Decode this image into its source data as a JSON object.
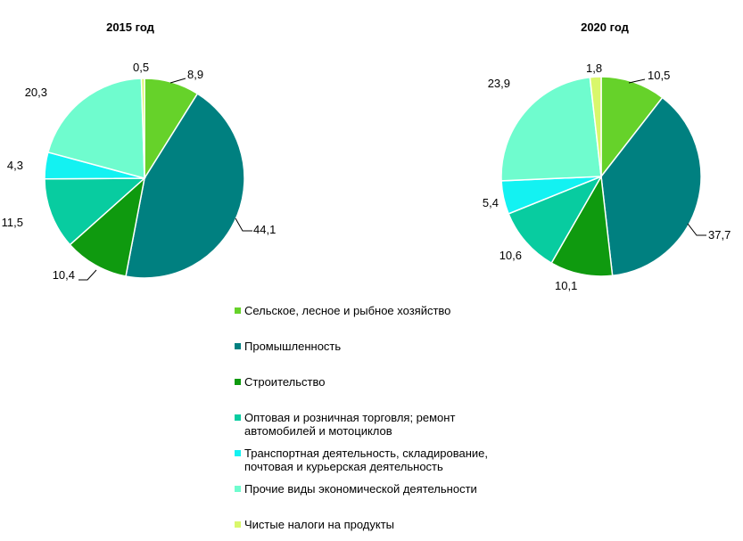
{
  "chart_data": [
    {
      "type": "pie",
      "title": "2015 год",
      "categories": [
        "Сельское, лесное и рыбное хозяйство",
        "Промышленность",
        "Строительство",
        "Оптовая и розничная торговля; ремонт автомобилей и мотоциклов",
        "Транспортная деятельность, складирование, почтовая и курьерская деятельность",
        "Прочие виды экономической деятельности",
        "Чистые налоги на продукты"
      ],
      "values": [
        8.9,
        44.1,
        10.4,
        11.5,
        4.3,
        20.3,
        0.5
      ],
      "value_labels": [
        "8,9",
        "44,1",
        "10,4",
        "11,5",
        "4,3",
        "20,3",
        "0,5"
      ]
    },
    {
      "type": "pie",
      "title": "2020 год",
      "categories": [
        "Сельское, лесное и рыбное хозяйство",
        "Промышленность",
        "Строительство",
        "Оптовая и розничная торговля; ремонт автомобилей и мотоциклов",
        "Транспортная деятельность, складирование, почтовая и курьерская деятельность",
        "Прочие виды экономической деятельности",
        "Чистые налоги на продукты"
      ],
      "values": [
        10.5,
        37.7,
        10.1,
        10.6,
        5.4,
        23.9,
        1.8
      ],
      "value_labels": [
        "10,5",
        "37,7",
        "10,1",
        "10,6",
        "5,4",
        "23,9",
        "1,8"
      ]
    }
  ],
  "legend": {
    "placement": "bottom-center",
    "items": [
      {
        "label_lines": [
          "Сельское, лесное и рыбное хозяйство"
        ],
        "color": "#66D22A"
      },
      {
        "label_lines": [
          "Промышленность"
        ],
        "color": "#008080"
      },
      {
        "label_lines": [
          "Строительство"
        ],
        "color": "#0F9A0F"
      },
      {
        "label_lines": [
          "Оптовая и розничная торговля; ремонт",
          "автомобилей и мотоциклов"
        ],
        "color": "#08CCA0"
      },
      {
        "label_lines": [
          "Транспортная деятельность, складирование,",
          "почтовая и курьерская деятельность"
        ],
        "color": "#13F2F2"
      },
      {
        "label_lines": [
          "Прочие виды экономической деятельности"
        ],
        "color": "#6FFCCE"
      },
      {
        "label_lines": [
          "Чистые налоги на продукты"
        ],
        "color": "#D9F76B"
      }
    ]
  }
}
